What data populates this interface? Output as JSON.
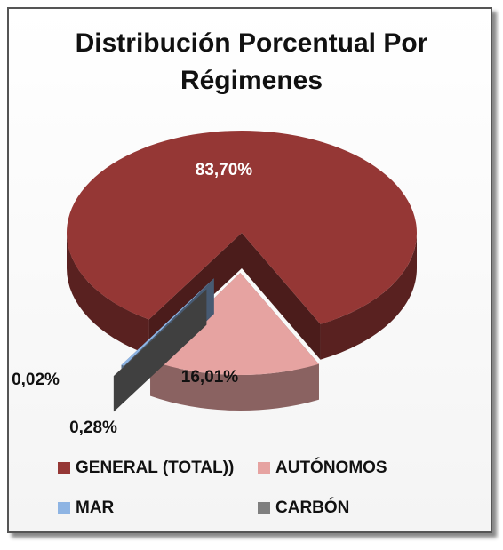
{
  "chart_data": {
    "type": "pie3d",
    "title": "Distribución Porcentual Por Régimenes",
    "categories": [
      "GENERAL (TOTAL))",
      "AUTÓNOMOS",
      "MAR",
      "CARBÓN"
    ],
    "values": [
      83.7,
      16.01,
      0.28,
      0.02
    ],
    "value_labels": [
      "83,70%",
      "16,01%",
      "0,28%",
      "0,02%"
    ],
    "colors": [
      "#953735",
      "#e6a3a1",
      "#8eb4e3",
      "#7f7f7f"
    ],
    "legend": "bottom"
  }
}
